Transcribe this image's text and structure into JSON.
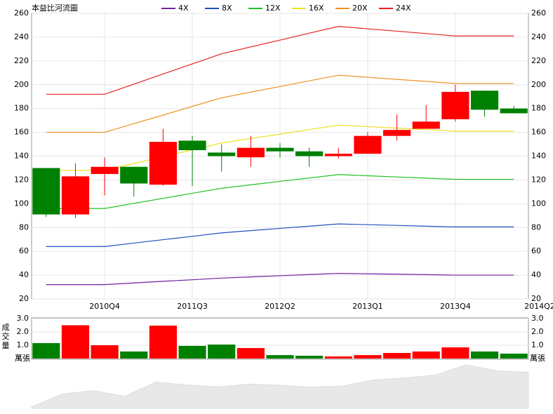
{
  "chart_data": [
    {
      "type": "candlestick",
      "title": "本益比河流圖",
      "legend": "top",
      "grid": true,
      "categories": [
        null,
        null,
        "2010Q4",
        null,
        null,
        "2011Q3",
        null,
        null,
        "2012Q2",
        null,
        null,
        "2013Q1",
        null,
        null,
        "2013Q4",
        null,
        "2014Q2"
      ],
      "open": [
        130,
        91,
        125,
        131,
        116,
        153,
        143,
        139,
        147,
        144,
        140,
        142,
        157,
        163,
        171,
        195,
        180
      ],
      "high": [
        130,
        134,
        139,
        131,
        163,
        157,
        150,
        157,
        151,
        147,
        147,
        160,
        175,
        183,
        200,
        195,
        182
      ],
      "low": [
        89,
        88,
        107,
        106,
        115,
        115,
        127,
        131,
        139,
        131,
        138,
        142,
        153,
        163,
        169,
        173,
        176
      ],
      "close": [
        91,
        123,
        131,
        117,
        152,
        145,
        140,
        147,
        144,
        140,
        142,
        157,
        162,
        169,
        194,
        179,
        176
      ],
      "up_color": "#ff0000",
      "down_color": "#008000",
      "series": [
        {
          "name": "4X",
          "color": "#7020a0",
          "values": [
            32,
            32,
            32,
            33.4,
            34.8,
            36.1,
            37.5,
            38.5,
            39.5,
            40.5,
            41.5,
            41.1,
            40.8,
            40.4,
            40,
            40,
            40
          ]
        },
        {
          "name": "8X",
          "color": "#2050c0",
          "values": [
            64,
            64,
            64,
            66.9,
            69.8,
            72.6,
            75.5,
            77.4,
            79.3,
            81.1,
            83,
            82.4,
            81.8,
            81.1,
            80.5,
            80.5,
            80.5
          ]
        },
        {
          "name": "12X",
          "color": "#20c020",
          "values": [
            96,
            96,
            96,
            100.3,
            104.5,
            108.8,
            113,
            115.9,
            118.8,
            121.6,
            124.5,
            123.5,
            122.5,
            121.5,
            120.5,
            120.5,
            120.5
          ]
        },
        {
          "name": "16X",
          "color": "#f0e020",
          "values": [
            128,
            128,
            128,
            133.8,
            139.5,
            145.3,
            151,
            154.8,
            158.5,
            162.3,
            166,
            164.8,
            163.5,
            162.3,
            161,
            161,
            161
          ]
        },
        {
          "name": "20X",
          "color": "#f09020",
          "values": [
            160,
            160,
            160,
            167.3,
            174.5,
            181.8,
            189,
            193.8,
            198.5,
            203.3,
            208,
            206.3,
            204.5,
            202.8,
            201,
            201,
            201
          ]
        },
        {
          "name": "24X",
          "color": "#e82020",
          "values": [
            192,
            192,
            192,
            200.5,
            209,
            217.5,
            226,
            231.8,
            237.5,
            243.3,
            249,
            247,
            245,
            243,
            241,
            241,
            241
          ]
        }
      ],
      "ylim": [
        20,
        260
      ],
      "yticks": [
        20,
        40,
        60,
        80,
        100,
        120,
        140,
        160,
        180,
        200,
        220,
        240,
        260
      ]
    },
    {
      "type": "bar",
      "ylabel": "成交量",
      "unit": "萬張",
      "values": [
        1.16,
        2.5,
        1.0,
        0.53,
        2.47,
        0.95,
        1.05,
        0.79,
        0.26,
        0.21,
        0.16,
        0.26,
        0.42,
        0.53,
        0.84,
        0.53,
        0.37
      ],
      "ylim": [
        0,
        3
      ],
      "yticks": [
        {
          "value": 1,
          "label": "1.0"
        },
        {
          "value": 2,
          "label": "2.0"
        },
        {
          "value": 3,
          "label": "3.0"
        }
      ]
    }
  ]
}
